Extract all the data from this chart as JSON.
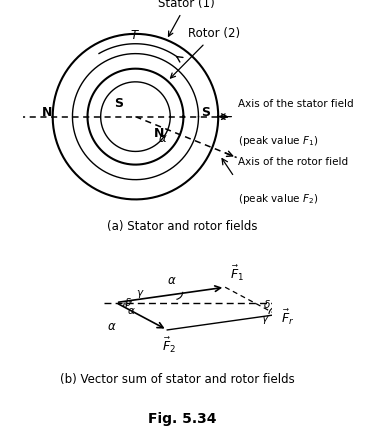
{
  "fig_title": "Fig. 5.34",
  "subplot_a_label": "(a) Stator and rotor fields",
  "subplot_b_label": "(b) Vector sum of stator and rotor fields",
  "stator_label": "Stator (1)",
  "rotor_label": "Rotor (2)",
  "axis_stator_line1": "Axis of the stator field",
  "axis_stator_line2": "(peak value $F_1$)",
  "axis_rotor_line1": "Axis of the rotor field",
  "axis_rotor_line2": "(peak value $F_2$)",
  "stator_outer_r": 0.44,
  "stator_inner_r": 0.335,
  "rotor_outer_r": 0.255,
  "rotor_inner_r": 0.185,
  "alpha_deg": 22,
  "bg_color": "#ffffff"
}
